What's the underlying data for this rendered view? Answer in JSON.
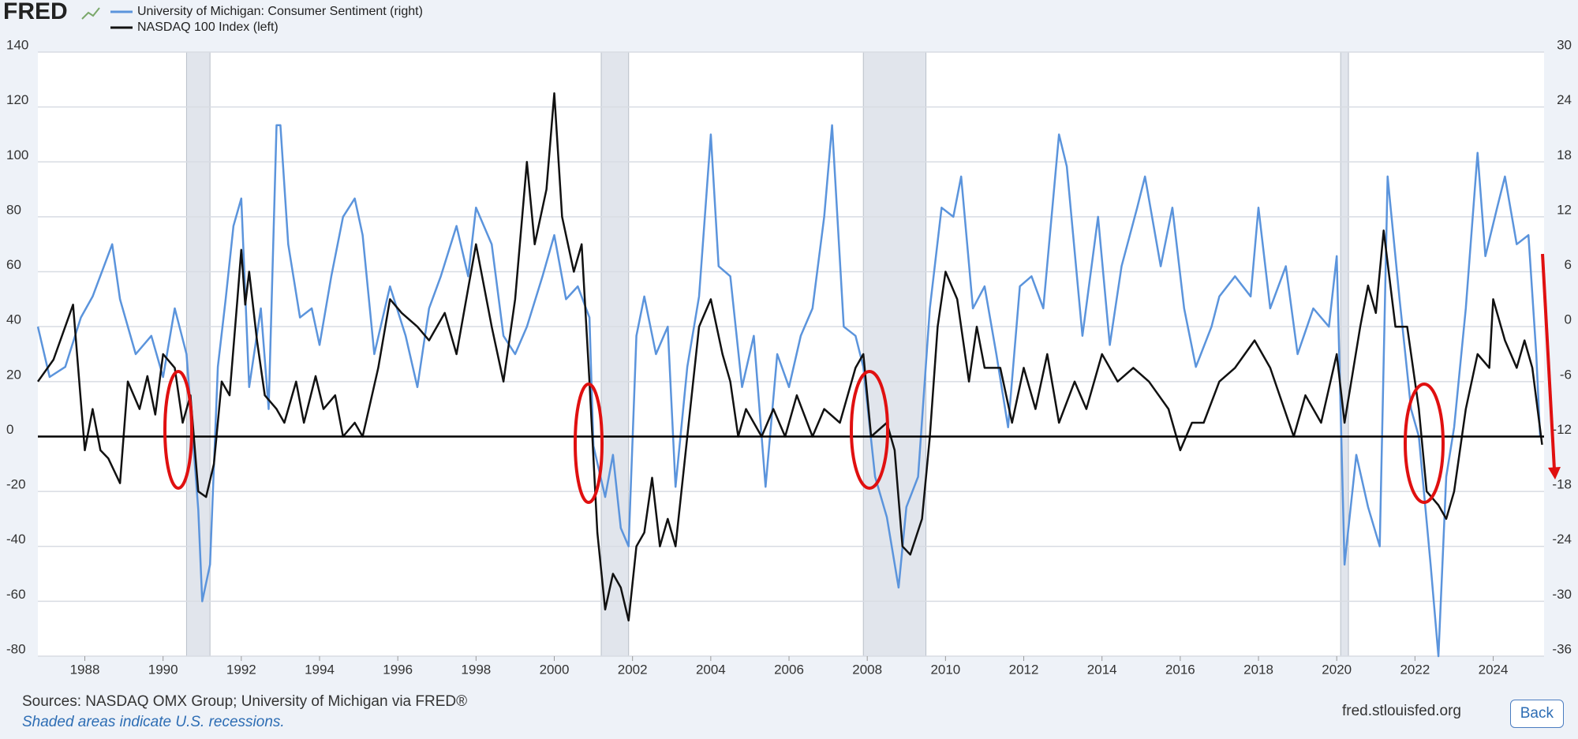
{
  "chart_data": {
    "type": "line",
    "logo": "FRED",
    "xlim": [
      1986.8,
      2025.3
    ],
    "xticks": [
      1988,
      1990,
      1992,
      1994,
      1996,
      1998,
      2000,
      2002,
      2004,
      2006,
      2008,
      2010,
      2012,
      2014,
      2016,
      2018,
      2020,
      2022,
      2024
    ],
    "ylim": [
      -80,
      140
    ],
    "yticks": [
      140,
      120,
      100,
      80,
      60,
      40,
      20,
      0,
      -20,
      -40,
      -60,
      -80
    ],
    "y2lim": [
      -36,
      30
    ],
    "y2ticks": [
      30,
      24,
      18,
      12,
      6,
      0,
      -6,
      -12,
      -18,
      -24,
      -30,
      -36
    ],
    "grid": true,
    "recessions": [
      [
        1990.6,
        1991.2
      ],
      [
        2001.2,
        2001.9
      ],
      [
        2007.9,
        2009.5
      ],
      [
        2020.1,
        2020.3
      ]
    ],
    "series": [
      {
        "name": "University of Michigan: Consumer Sentiment (right)",
        "color": "#5b94dc",
        "axis": "y2",
        "x": [
          1986.8,
          1987.1,
          1987.5,
          1987.9,
          1988.2,
          1988.7,
          1988.9,
          1989.3,
          1989.7,
          1990.0,
          1990.3,
          1990.6,
          1990.9,
          1991.0,
          1991.2,
          1991.4,
          1991.6,
          1991.8,
          1992.0,
          1992.2,
          1992.5,
          1992.7,
          1992.9,
          1993.0,
          1993.2,
          1993.5,
          1993.8,
          1994.0,
          1994.3,
          1994.6,
          1994.9,
          1995.1,
          1995.4,
          1995.8,
          1996.2,
          1996.5,
          1996.8,
          1997.1,
          1997.5,
          1997.8,
          1998.0,
          1998.4,
          1998.7,
          1999.0,
          1999.3,
          1999.7,
          2000.0,
          2000.3,
          2000.6,
          2000.9,
          2001.0,
          2001.3,
          2001.5,
          2001.7,
          2001.9,
          2002.1,
          2002.3,
          2002.6,
          2002.9,
          2003.1,
          2003.4,
          2003.7,
          2004.0,
          2004.2,
          2004.5,
          2004.8,
          2005.1,
          2005.4,
          2005.7,
          2006.0,
          2006.3,
          2006.6,
          2006.9,
          2007.1,
          2007.4,
          2007.7,
          2007.9,
          2008.2,
          2008.5,
          2008.8,
          2009.0,
          2009.3,
          2009.6,
          2009.9,
          2010.2,
          2010.4,
          2010.7,
          2011.0,
          2011.3,
          2011.6,
          2011.9,
          2012.2,
          2012.5,
          2012.9,
          2013.1,
          2013.5,
          2013.9,
          2014.2,
          2014.5,
          2014.9,
          2015.1,
          2015.5,
          2015.8,
          2016.1,
          2016.4,
          2016.8,
          2017.0,
          2017.4,
          2017.8,
          2018.0,
          2018.3,
          2018.7,
          2019.0,
          2019.4,
          2019.8,
          2020.0,
          2020.2,
          2020.5,
          2020.8,
          2021.1,
          2021.3,
          2021.6,
          2021.9,
          2022.1,
          2022.4,
          2022.6,
          2022.8,
          2023.0,
          2023.3,
          2023.6,
          2023.8,
          2024.1,
          2024.3,
          2024.6,
          2024.9,
          2025.1,
          2025.2
        ],
        "values": [
          0,
          -5.5,
          -4.4,
          1,
          3.3,
          9,
          3,
          -3,
          -1,
          -5.5,
          2,
          -3,
          -20,
          -30,
          -26,
          -4.4,
          3,
          11,
          14,
          -6.6,
          2,
          -9,
          22,
          22,
          9,
          1,
          2,
          -2,
          5.5,
          12,
          14,
          10,
          -3,
          4.4,
          -1,
          -6.6,
          2,
          5.5,
          11,
          5.5,
          13,
          9,
          -1,
          -3,
          0,
          5.5,
          10,
          3,
          4.4,
          1,
          -13,
          -18.6,
          -14,
          -22,
          -24,
          -1,
          3.3,
          -3,
          0,
          -17.5,
          -4.4,
          3.3,
          21,
          6.6,
          5.5,
          -6.6,
          -1,
          -17.5,
          -3,
          -6.6,
          -1,
          2,
          12,
          22,
          0,
          -1,
          -4.4,
          -16.4,
          -20.8,
          -28.5,
          -19.7,
          -16.4,
          2,
          13,
          12,
          16.4,
          2,
          4.4,
          -3,
          -11,
          4.4,
          5.5,
          2,
          21,
          17.5,
          -1,
          12,
          -2,
          6.6,
          13,
          16.4,
          6.6,
          13,
          2,
          -4.4,
          0,
          3.3,
          5.5,
          3.3,
          13,
          2,
          6.6,
          -3,
          2,
          0,
          7.7,
          -26,
          -14,
          -19.7,
          -24,
          16.4,
          3.3,
          -9,
          -12,
          -26,
          -36,
          -16.4,
          -11,
          2,
          19,
          7.7,
          13,
          16.4,
          9,
          10,
          -3,
          -12
        ]
      },
      {
        "name": "NASDAQ 100 Index (left)",
        "color": "#111111",
        "axis": "y",
        "x": [
          1986.8,
          1987.2,
          1987.7,
          1988.0,
          1988.2,
          1988.4,
          1988.6,
          1988.9,
          1989.1,
          1989.4,
          1989.6,
          1989.8,
          1990.0,
          1990.3,
          1990.5,
          1990.7,
          1990.9,
          1991.1,
          1991.3,
          1991.5,
          1991.7,
          1991.9,
          1992.0,
          1992.1,
          1992.2,
          1992.4,
          1992.6,
          1992.9,
          1993.1,
          1993.4,
          1993.6,
          1993.9,
          1994.1,
          1994.4,
          1994.6,
          1994.9,
          1995.1,
          1995.5,
          1995.8,
          1996.1,
          1996.5,
          1996.8,
          1997.2,
          1997.5,
          1998.0,
          1998.4,
          1998.7,
          1999.0,
          1999.3,
          1999.5,
          1999.8,
          2000.0,
          2000.2,
          2000.5,
          2000.7,
          2000.9,
          2001.1,
          2001.3,
          2001.5,
          2001.7,
          2001.9,
          2002.1,
          2002.3,
          2002.5,
          2002.7,
          2002.9,
          2003.1,
          2003.4,
          2003.7,
          2004.0,
          2004.3,
          2004.5,
          2004.7,
          2004.9,
          2005.3,
          2005.6,
          2005.9,
          2006.2,
          2006.6,
          2006.9,
          2007.3,
          2007.7,
          2007.9,
          2008.1,
          2008.5,
          2008.7,
          2008.9,
          2009.1,
          2009.4,
          2009.6,
          2009.8,
          2010.0,
          2010.3,
          2010.6,
          2010.8,
          2011.0,
          2011.4,
          2011.7,
          2012.0,
          2012.3,
          2012.6,
          2012.9,
          2013.3,
          2013.6,
          2014.0,
          2014.4,
          2014.8,
          2015.2,
          2015.7,
          2016.0,
          2016.3,
          2016.6,
          2017.0,
          2017.4,
          2017.9,
          2018.3,
          2018.9,
          2019.2,
          2019.6,
          2020.0,
          2020.2,
          2020.6,
          2020.8,
          2021.0,
          2021.2,
          2021.5,
          2021.8,
          2022.1,
          2022.3,
          2022.6,
          2022.8,
          2023.0,
          2023.3,
          2023.6,
          2023.9,
          2024.0,
          2024.3,
          2024.6,
          2024.8,
          2025.0,
          2025.25
        ],
        "values": [
          20,
          28,
          48,
          -5,
          10,
          -5,
          -8,
          -17,
          20,
          10,
          22,
          8,
          30,
          25,
          5,
          15,
          -20,
          -22,
          -10,
          20,
          15,
          50,
          68,
          48,
          60,
          35,
          15,
          10,
          5,
          20,
          5,
          22,
          10,
          15,
          0,
          5,
          0,
          25,
          50,
          45,
          40,
          35,
          45,
          30,
          70,
          40,
          20,
          50,
          100,
          70,
          90,
          125,
          80,
          60,
          70,
          20,
          -35,
          -63,
          -50,
          -55,
          -67,
          -40,
          -35,
          -15,
          -40,
          -30,
          -40,
          0,
          40,
          50,
          30,
          20,
          0,
          10,
          0,
          10,
          0,
          15,
          0,
          10,
          5,
          25,
          30,
          0,
          5,
          -5,
          -40,
          -43,
          -30,
          0,
          40,
          60,
          50,
          20,
          40,
          25,
          25,
          5,
          25,
          10,
          30,
          5,
          20,
          10,
          30,
          20,
          25,
          20,
          10,
          -5,
          5,
          5,
          20,
          25,
          35,
          25,
          0,
          15,
          5,
          30,
          5,
          40,
          55,
          45,
          75,
          40,
          40,
          10,
          -20,
          -25,
          -30,
          -20,
          10,
          30,
          25,
          50,
          35,
          25,
          35,
          25,
          -3
        ]
      }
    ],
    "sources": "Sources: NASDAQ OMX Group; University of Michigan via FRED®",
    "recession_note": "Shaded areas indicate U.S. recessions.",
    "site": "fred.stlouisfed.org",
    "button": "Back"
  }
}
